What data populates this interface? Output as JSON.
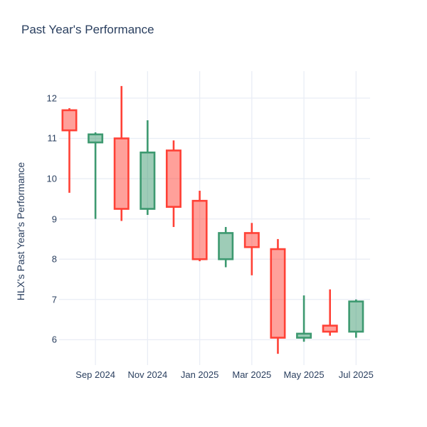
{
  "title": {
    "text": "Past Year's Performance"
  },
  "y_axis": {
    "title": "HLX's Past Year's Performance",
    "tick_values": [
      12,
      11,
      10,
      9,
      8,
      7,
      6
    ],
    "range": [
      5.37,
      12.67
    ]
  },
  "x_axis": {
    "ticks": [
      {
        "label": "Sep 2024",
        "index": 1
      },
      {
        "label": "Nov 2024",
        "index": 3
      },
      {
        "label": "Jan 2025",
        "index": 5
      },
      {
        "label": "Mar 2025",
        "index": 7
      },
      {
        "label": "May 2025",
        "index": 9
      },
      {
        "label": "Jul 2025",
        "index": 11
      }
    ]
  },
  "colors": {
    "background": "#ffffff",
    "text": "#2a3f5f",
    "grid": "#e9edf5",
    "increasing_line": "#3d9970",
    "increasing_fill": "#9eccb8",
    "decreasing_line": "#ff4136",
    "decreasing_fill": "#ffa09b"
  },
  "chart_data": {
    "type": "candlestick",
    "title": "Past Year's Performance",
    "xlabel": "",
    "ylabel": "HLX's Past Year's Performance",
    "ylim": [
      5.37,
      12.67
    ],
    "grid": true,
    "legend": false,
    "x": [
      "Aug 2024",
      "Sep 2024",
      "Oct 2024",
      "Nov 2024",
      "Dec 2024",
      "Jan 2025",
      "Feb 2025",
      "Mar 2025",
      "Apr 2025",
      "May 2025",
      "Jun 2025",
      "Jul 2025"
    ],
    "ohlc": [
      {
        "month": "Aug 2024",
        "open": 11.7,
        "high": 11.75,
        "low": 9.65,
        "close": 11.2,
        "direction": "decreasing"
      },
      {
        "month": "Sep 2024",
        "open": 10.9,
        "high": 11.15,
        "low": 9.0,
        "close": 11.1,
        "direction": "increasing"
      },
      {
        "month": "Oct 2024",
        "open": 11.0,
        "high": 12.3,
        "low": 8.95,
        "close": 9.25,
        "direction": "decreasing"
      },
      {
        "month": "Nov 2024",
        "open": 9.25,
        "high": 11.45,
        "low": 9.1,
        "close": 10.65,
        "direction": "increasing"
      },
      {
        "month": "Dec 2024",
        "open": 10.7,
        "high": 10.95,
        "low": 8.8,
        "close": 9.3,
        "direction": "decreasing"
      },
      {
        "month": "Jan 2025",
        "open": 9.45,
        "high": 9.7,
        "low": 7.95,
        "close": 8.0,
        "direction": "decreasing"
      },
      {
        "month": "Feb 2025",
        "open": 8.0,
        "high": 8.8,
        "low": 7.8,
        "close": 8.65,
        "direction": "increasing"
      },
      {
        "month": "Mar 2025",
        "open": 8.65,
        "high": 8.9,
        "low": 7.6,
        "close": 8.3,
        "direction": "decreasing"
      },
      {
        "month": "Apr 2025",
        "open": 8.25,
        "high": 8.5,
        "low": 5.65,
        "close": 6.05,
        "direction": "decreasing"
      },
      {
        "month": "May 2025",
        "open": 6.05,
        "high": 7.1,
        "low": 5.95,
        "close": 6.15,
        "direction": "increasing"
      },
      {
        "month": "Jun 2025",
        "open": 6.35,
        "high": 7.25,
        "low": 6.1,
        "close": 6.2,
        "direction": "decreasing"
      },
      {
        "month": "Jul 2025",
        "open": 6.2,
        "high": 7.0,
        "low": 6.05,
        "close": 6.95,
        "direction": "increasing"
      }
    ]
  }
}
